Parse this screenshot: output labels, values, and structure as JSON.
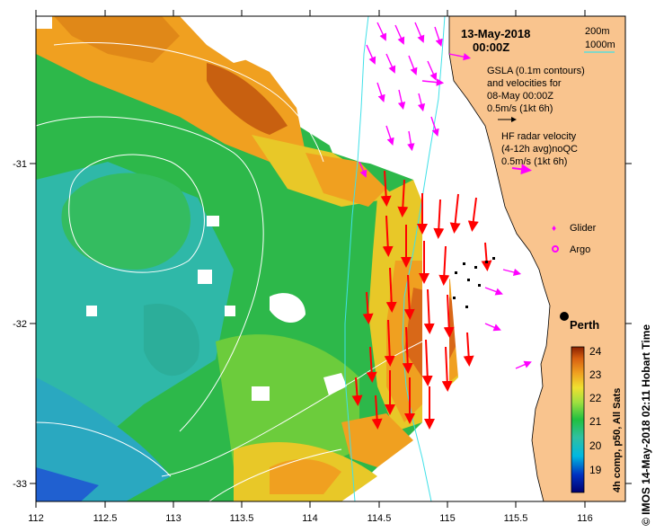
{
  "map": {
    "date": "13-May-2018",
    "time": "00:00Z",
    "x_ticks": [
      "112",
      "112.5",
      "113",
      "113.5",
      "114",
      "114.5",
      "115",
      "115.5",
      "116"
    ],
    "y_ticks": [
      "-31",
      "-32",
      "-33"
    ],
    "location": "Perth",
    "depth_legend": [
      {
        "label": "200m",
        "color": "#40e0e8"
      },
      {
        "label": "1000m",
        "color": "#40e0e8"
      }
    ],
    "gsla_text": [
      "GSLA (0.1m contours)",
      "and velocities for",
      "08-May 00:00Z",
      "0.5m/s (1kt 6h)"
    ],
    "hf_text": [
      "HF radar velocity",
      "(4-12h avg)noQC",
      "0.5m/s (1kt 6h)"
    ],
    "legend_items": [
      {
        "label": "Glider",
        "color": "#ff00ff"
      },
      {
        "label": "Argo",
        "color": "#ff00ff"
      }
    ],
    "colorbar": {
      "labels": [
        "24",
        "23",
        "22",
        "21",
        "20",
        "19"
      ],
      "caption": "4h comp, p50, All Sats"
    },
    "side_caption": "©  IMOS 14-May-2018 02:11 Hobart Time",
    "colors": {
      "land": "#f9c48e",
      "arrows_hf": "#ff00ff",
      "arrows_gsla": "#000000",
      "strong_flow": "#ff0000"
    }
  }
}
